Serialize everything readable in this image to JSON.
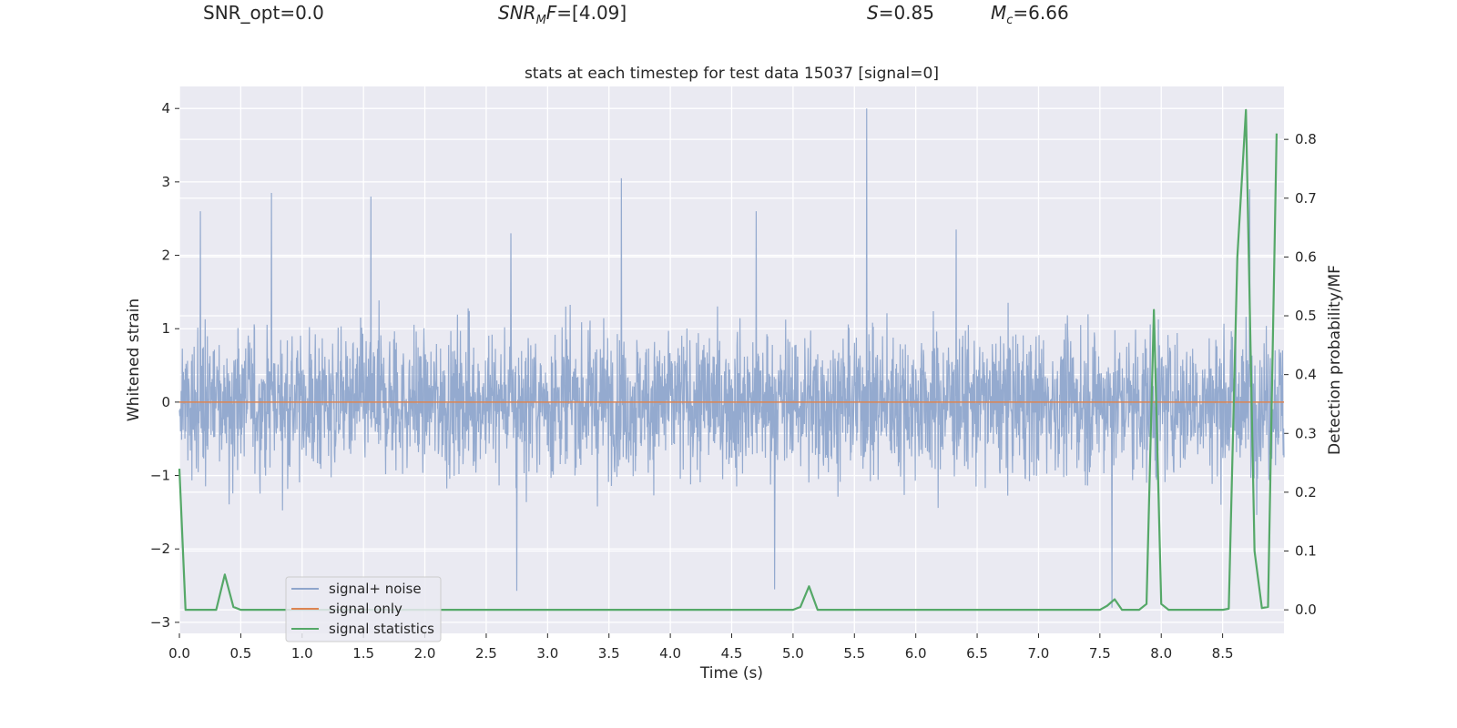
{
  "header": {
    "snr_opt": "SNR_opt=0.0",
    "snr_mf_italic": "SNR",
    "snr_mf_sub": "M",
    "snr_mf_italic2": "F",
    "snr_mf_value": "=[4.09]",
    "s_italic": "S",
    "s_value": "=0.85",
    "mc_italic": "M",
    "mc_sub": "c",
    "mc_value": "=6.66"
  },
  "chart_data": {
    "type": "line",
    "title": "stats at each timestep for test data 15037 [signal=0]",
    "xlabel": "Time (s)",
    "ylabel": "Whitened strain",
    "y2label": "Detection probability/MF",
    "xlim": [
      0.0,
      9.0
    ],
    "ylim": [
      -3.15,
      4.3
    ],
    "y2lim": [
      -0.04,
      0.89
    ],
    "x_ticks": [
      "0.0",
      "0.5",
      "1.0",
      "1.5",
      "2.0",
      "2.5",
      "3.0",
      "3.5",
      "4.0",
      "4.5",
      "5.0",
      "5.5",
      "6.0",
      "6.5",
      "7.0",
      "7.5",
      "8.0",
      "8.5"
    ],
    "y_ticks": [
      "−3",
      "−2",
      "−1",
      "0",
      "1",
      "2",
      "3",
      "4"
    ],
    "y2_ticks": [
      "0.0",
      "0.1",
      "0.2",
      "0.3",
      "0.4",
      "0.5",
      "0.6",
      "0.7",
      "0.8"
    ],
    "legend": {
      "position": "lower-left",
      "entries": [
        "signal+ noise",
        "signal only",
        "signal statistics"
      ]
    },
    "colors": {
      "signal_noise": "#8fa6cc",
      "signal_only": "#dd8452",
      "signal_statistics": "#55a868",
      "background": "#eaeaf2",
      "grid": "#ffffff"
    },
    "series": [
      {
        "name": "signal+ noise",
        "axis": "left",
        "description_note": "dense whitened-strain noise, approx. Gaussian with std ~0.7",
        "peaks": [
          {
            "x": 0.17,
            "y": 2.6
          },
          {
            "x": 0.75,
            "y": 2.85
          },
          {
            "x": 1.56,
            "y": 2.8
          },
          {
            "x": 2.7,
            "y": 2.3
          },
          {
            "x": 3.6,
            "y": 3.05
          },
          {
            "x": 4.7,
            "y": 2.6
          },
          {
            "x": 5.6,
            "y": 4.0
          },
          {
            "x": 6.33,
            "y": 2.35
          },
          {
            "x": 8.72,
            "y": 2.9
          },
          {
            "x": 2.75,
            "y": -2.57
          },
          {
            "x": 4.85,
            "y": -2.55
          },
          {
            "x": 7.6,
            "y": -2.8
          }
        ]
      },
      {
        "name": "signal only",
        "axis": "left",
        "x": [
          0.0,
          9.0
        ],
        "y": [
          0.0,
          0.0
        ]
      },
      {
        "name": "signal statistics",
        "axis": "right",
        "x": [
          0.0,
          0.05,
          0.1,
          0.15,
          0.2,
          0.25,
          0.3,
          0.37,
          0.44,
          0.5,
          0.55,
          1.0,
          2.0,
          3.0,
          4.0,
          4.5,
          5.0,
          5.06,
          5.13,
          5.2,
          5.25,
          6.0,
          7.0,
          7.5,
          7.56,
          7.62,
          7.68,
          7.75,
          7.82,
          7.88,
          7.94,
          8.0,
          8.06,
          8.12,
          8.3,
          8.5,
          8.55,
          8.62,
          8.69,
          8.76,
          8.82,
          8.87,
          8.94
        ],
        "y": [
          0.24,
          0.0,
          0.0,
          0.0,
          0.0,
          0.0,
          0.0,
          0.06,
          0.005,
          0.0,
          0.0,
          0.0,
          0.0,
          0.0,
          0.0,
          0.0,
          0.0,
          0.005,
          0.04,
          0.0,
          0.0,
          0.0,
          0.0,
          0.0,
          0.007,
          0.018,
          0.0,
          0.0,
          0.0,
          0.01,
          0.51,
          0.01,
          0.0,
          0.0,
          0.0,
          0.0,
          0.002,
          0.6,
          0.85,
          0.1,
          0.003,
          0.005,
          0.81
        ]
      }
    ]
  }
}
